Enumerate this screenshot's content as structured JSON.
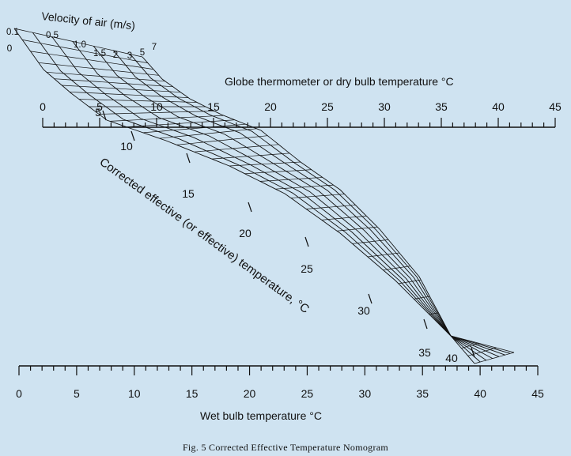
{
  "caption": "Fig. 5 Corrected Effective Temperature Nomogram",
  "chart_data": {
    "type": "nomogram",
    "title": "",
    "scales": {
      "globe": {
        "label": "Globe thermometer or dry bulb temperature °C",
        "range": [
          0,
          45
        ],
        "ticks": [
          0,
          5,
          10,
          15,
          20,
          25,
          30,
          35,
          40,
          45
        ]
      },
      "wet": {
        "label": "Wet bulb temperature °C",
        "range": [
          0,
          45
        ],
        "ticks": [
          0,
          5,
          10,
          15,
          20,
          25,
          30,
          35,
          40,
          45
        ]
      },
      "cet": {
        "label": "Corrected effective (or effective) temperature, °C",
        "ticks": [
          "5",
          "10",
          "15",
          "20",
          "25",
          "30",
          "35",
          "40"
        ]
      },
      "velocity": {
        "label": "Velocity of air (m/s)",
        "values": [
          "0.1",
          "0.5",
          "1.0",
          "1.5",
          "2",
          "3",
          "5",
          "7"
        ],
        "extra_label": "0"
      }
    },
    "colors": {
      "line": "#111111",
      "background": "#cfe3f1"
    }
  }
}
